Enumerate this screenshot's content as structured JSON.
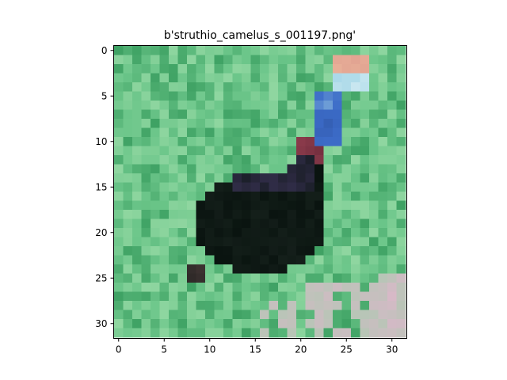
{
  "figure": {
    "title": "b'struthio_camelus_s_001197.png'"
  },
  "image": {
    "subject": "ostrich standing on grass",
    "grid_size": [
      32,
      32
    ],
    "colors": {
      "grass": "#6cc68a",
      "grass_dark": "#3fa264",
      "grass_light": "#8fd6a0",
      "body": "#0a1410",
      "body_highlight": "#3c3458",
      "neck_red": "#8c3c4c",
      "neck_blue": "#3c6cc8",
      "neck_light": "#a8d8e8",
      "head_pink": "#e0a090",
      "flower_pink": "#d8b8c8"
    }
  },
  "axes": {
    "x_ticks": [
      "0",
      "5",
      "10",
      "15",
      "20",
      "25",
      "30"
    ],
    "y_ticks": [
      "0",
      "5",
      "10",
      "15",
      "20",
      "25",
      "30"
    ]
  }
}
